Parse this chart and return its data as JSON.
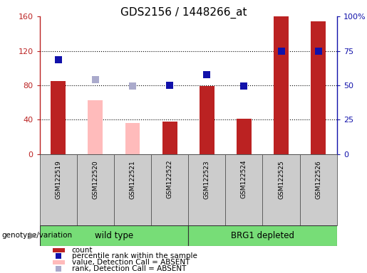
{
  "title": "GDS2156 / 1448266_at",
  "samples": [
    "GSM122519",
    "GSM122520",
    "GSM122521",
    "GSM122522",
    "GSM122523",
    "GSM122524",
    "GSM122525",
    "GSM122526"
  ],
  "count_values": [
    85,
    63,
    36,
    38,
    79,
    41,
    160,
    154
  ],
  "count_absent": [
    false,
    true,
    true,
    false,
    false,
    false,
    false,
    false
  ],
  "rank_values": [
    110,
    87,
    79,
    80,
    92,
    79,
    120,
    120
  ],
  "rank_absent": [
    false,
    true,
    true,
    false,
    false,
    false,
    false,
    false
  ],
  "count_color": "#bb2222",
  "count_absent_color": "#ffbbbb",
  "rank_color": "#1111aa",
  "rank_absent_color": "#aaaacc",
  "ylim_left": [
    0,
    160
  ],
  "ylim_right": [
    0,
    100
  ],
  "yticks_left": [
    0,
    40,
    80,
    120,
    160
  ],
  "yticks_right": [
    0,
    25,
    50,
    75,
    100
  ],
  "yticklabels_left": [
    "0",
    "40",
    "80",
    "120",
    "160"
  ],
  "yticklabels_right": [
    "0",
    "25",
    "50",
    "75",
    "100%"
  ],
  "wild_type_label": "wild type",
  "brg1_label": "BRG1 depleted",
  "group_color": "#77dd77",
  "genotype_label": "genotype/variation",
  "bar_width": 0.4,
  "marker_size": 7,
  "legend_items": [
    {
      "label": "count",
      "color": "#bb2222",
      "type": "bar"
    },
    {
      "label": "percentile rank within the sample",
      "color": "#1111aa",
      "type": "marker"
    },
    {
      "label": "value, Detection Call = ABSENT",
      "color": "#ffbbbb",
      "type": "bar"
    },
    {
      "label": "rank, Detection Call = ABSENT",
      "color": "#aaaacc",
      "type": "marker"
    }
  ],
  "n_wild_type": 4,
  "tick_fontsize": 8,
  "title_fontsize": 11
}
